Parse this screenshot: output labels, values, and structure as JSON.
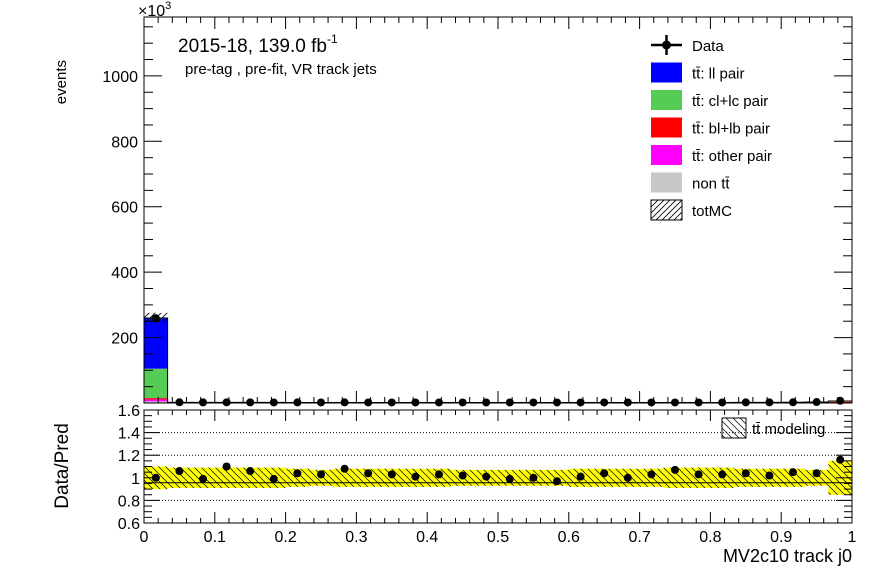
{
  "chart_data": [
    {
      "type": "bar",
      "panel": "main",
      "stacked": true,
      "ylabel": "events",
      "y_multiplier_label": "×10",
      "y_multiplier_exponent": "3",
      "y_ticks": [
        200,
        400,
        600,
        800,
        1000
      ],
      "ylim": [
        0,
        1180
      ],
      "xlim": [
        0,
        1
      ],
      "n_bins": 30,
      "annotations": {
        "lumi_text": "2015-18, 139.0 fb",
        "lumi_exponent": "-1",
        "selection_text": "pre-tag ,  pre-fit, VR track jets"
      },
      "legend": {
        "placement": "top-right",
        "entries": [
          {
            "label": "Data",
            "style": "marker",
            "color": "#000000"
          },
          {
            "label": "tt̄: ll pair",
            "style": "fill",
            "color": "#0000ff"
          },
          {
            "label": "tt̄: cl+lc pair",
            "style": "fill",
            "color": "#55cc55"
          },
          {
            "label": "tt̄: bl+lb pair",
            "style": "fill",
            "color": "#ff0000"
          },
          {
            "label": "tt̄: other pair",
            "style": "fill",
            "color": "#ff00ff"
          },
          {
            "label": "non tt̄",
            "style": "fill",
            "color": "#c8c8c8"
          },
          {
            "label": "totMC",
            "style": "hatch",
            "color": "#000000"
          }
        ]
      },
      "series": [
        {
          "name": "tt̄: ll pair",
          "color": "#0000ff",
          "values": [
            155,
            0.8,
            0.7,
            0.7,
            0.7,
            0.6,
            0.6,
            0.6,
            0.6,
            0.6,
            0.6,
            0.6,
            0.6,
            0.6,
            0.6,
            0.6,
            0.6,
            0.6,
            0.6,
            0.6,
            0.6,
            0.6,
            0.6,
            0.6,
            0.6,
            0.7,
            0.7,
            0.8,
            0.9,
            1.2
          ]
        },
        {
          "name": "tt̄: cl+lc pair",
          "color": "#55cc55",
          "values": [
            90,
            0.6,
            0.5,
            0.5,
            0.5,
            0.5,
            0.4,
            0.4,
            0.4,
            0.4,
            0.4,
            0.4,
            0.4,
            0.4,
            0.4,
            0.4,
            0.4,
            0.4,
            0.4,
            0.4,
            0.4,
            0.4,
            0.4,
            0.4,
            0.4,
            0.5,
            0.5,
            0.6,
            0.7,
            1.0
          ]
        },
        {
          "name": "tt̄: bl+lb pair",
          "color": "#ff0000",
          "values": [
            4,
            0.3,
            0.3,
            0.3,
            0.3,
            0.3,
            0.3,
            0.3,
            0.3,
            0.3,
            0.3,
            0.3,
            0.3,
            0.3,
            0.3,
            0.3,
            0.3,
            0.3,
            0.3,
            0.3,
            0.3,
            0.3,
            0.3,
            0.3,
            0.3,
            0.3,
            0.3,
            0.4,
            0.6,
            2.5
          ]
        },
        {
          "name": "tt̄: other pair",
          "color": "#ff00ff",
          "values": [
            6,
            0.2,
            0.2,
            0.2,
            0.2,
            0.2,
            0.2,
            0.2,
            0.2,
            0.2,
            0.2,
            0.2,
            0.2,
            0.2,
            0.2,
            0.2,
            0.2,
            0.2,
            0.2,
            0.2,
            0.2,
            0.2,
            0.2,
            0.2,
            0.2,
            0.2,
            0.2,
            0.3,
            0.4,
            0.8
          ]
        },
        {
          "name": "non tt̄",
          "color": "#c8c8c8",
          "values": [
            5,
            0.2,
            0.2,
            0.2,
            0.2,
            0.2,
            0.2,
            0.2,
            0.2,
            0.2,
            0.2,
            0.2,
            0.2,
            0.2,
            0.2,
            0.2,
            0.2,
            0.2,
            0.2,
            0.2,
            0.2,
            0.2,
            0.2,
            0.2,
            0.2,
            0.2,
            0.2,
            0.2,
            0.3,
            0.5
          ]
        }
      ],
      "data": {
        "name": "Data",
        "values": [
          259,
          2.2,
          1.9,
          2.0,
          1.9,
          1.7,
          1.8,
          1.7,
          1.8,
          1.7,
          1.7,
          1.6,
          1.7,
          1.6,
          1.6,
          1.6,
          1.6,
          1.6,
          1.6,
          1.6,
          1.7,
          1.6,
          1.7,
          1.7,
          1.7,
          1.9,
          2.0,
          2.3,
          3.0,
          6.9
        ]
      }
    },
    {
      "type": "scatter",
      "panel": "ratio",
      "ylabel": "Data/Pred",
      "xlabel": "MV2c10 track j0",
      "xlim": [
        0,
        1
      ],
      "ylim": [
        0.6,
        1.6
      ],
      "y_ticks": [
        0.6,
        0.8,
        1,
        1.2,
        1.4,
        1.6
      ],
      "y_tick_labels": [
        "0.6",
        "0.8",
        "1",
        "1.2",
        "1.4",
        "1.6"
      ],
      "x_ticks": [
        0,
        0.1,
        0.2,
        0.3,
        0.4,
        0.5,
        0.6,
        0.7,
        0.8,
        0.9,
        1
      ],
      "x_tick_labels": [
        "0",
        "0.1",
        "0.2",
        "0.3",
        "0.4",
        "0.5",
        "0.6",
        "0.7",
        "0.8",
        "0.9",
        "1"
      ],
      "dotted_gridlines": [
        0.8,
        1.2,
        1.4
      ],
      "ratio_values": [
        1.0,
        1.06,
        0.99,
        1.1,
        1.06,
        0.99,
        1.04,
        1.03,
        1.08,
        1.04,
        1.03,
        1.01,
        1.03,
        1.02,
        1.01,
        0.99,
        1.0,
        0.97,
        1.01,
        1.04,
        1.0,
        1.03,
        1.07,
        1.03,
        1.03,
        1.04,
        1.02,
        1.05,
        1.04,
        1.16
      ],
      "band_half_width": [
        0.1,
        0.09,
        0.09,
        0.09,
        0.09,
        0.09,
        0.08,
        0.07,
        0.08,
        0.08,
        0.08,
        0.08,
        0.08,
        0.07,
        0.07,
        0.07,
        0.07,
        0.07,
        0.08,
        0.08,
        0.08,
        0.08,
        0.09,
        0.09,
        0.09,
        0.08,
        0.08,
        0.08,
        0.07,
        0.15
      ],
      "band_color": "#ffff00",
      "legend": {
        "placement": "top-right",
        "entries": [
          {
            "label": "tt̄ modeling",
            "style": "hatch"
          }
        ]
      }
    }
  ]
}
